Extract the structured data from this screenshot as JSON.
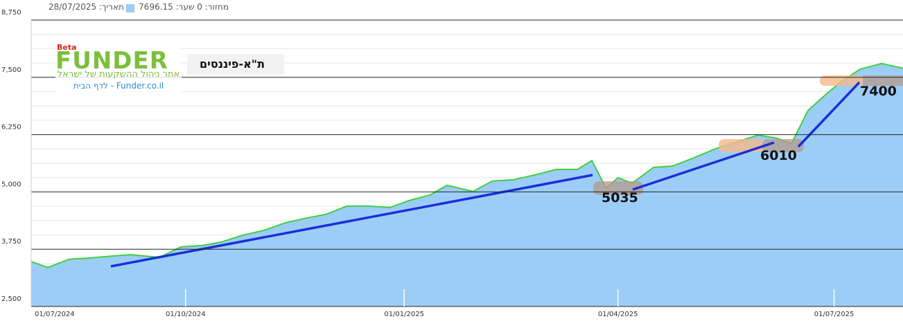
{
  "header": {
    "date_label": "תאריך:",
    "date": "28/07/2025",
    "volume_label": "מחזור:",
    "volume": 0,
    "price_label": "שער:",
    "price": 7696.15
  },
  "logo": {
    "beta": "Beta",
    "brand": "FUNDER",
    "tagline": "אתר ניהול ההשקעות של ישראל",
    "link": "Funder.co.il - לדף הבית"
  },
  "chart_data": {
    "type": "area",
    "title": "ת\"א-פיננסים",
    "color": "#9ccdf7",
    "line_color": "#3fcf3f",
    "x": [
      "28/07/2024",
      "04/08/2024",
      "13/08/2024",
      "22/08/2024",
      "31/08/2024",
      "08/09/2024",
      "20/09/2024",
      "29/09/2024",
      "08/10/2024",
      "16/10/2024",
      "25/10/2024",
      "03/11/2024",
      "12/11/2024",
      "20/11/2024",
      "29/11/2024",
      "08/12/2024",
      "17/12/2024",
      "26/12/2024",
      "03/01/2025",
      "12/01/2025",
      "19/01/2025",
      "30/01/2025",
      "07/02/2025",
      "16/02/2025",
      "25/02/2025",
      "06/03/2025",
      "15/03/2025",
      "21/03/2025",
      "27/03/2025",
      "01/04/2025",
      "07/04/2025",
      "16/04/2025",
      "24/04/2025",
      "03/05/2025",
      "12/05/2025",
      "21/05/2025",
      "30/05/2025",
      "07/06/2025",
      "13/06/2025",
      "20/06/2025",
      "28/06/2025",
      "04/07/2025",
      "12/07/2025",
      "21/07/2025",
      "30/07/2025"
    ],
    "values": [
      3480,
      3350,
      3530,
      3560,
      3600,
      3630,
      3570,
      3800,
      3830,
      3905,
      4055,
      4160,
      4325,
      4420,
      4510,
      4690,
      4690,
      4660,
      4810,
      4935,
      5145,
      5010,
      5235,
      5265,
      5370,
      5490,
      5490,
      5685,
      5080,
      5310,
      5190,
      5535,
      5565,
      5745,
      5940,
      6090,
      6240,
      6170,
      6050,
      6775,
      7150,
      7405,
      7680,
      7800,
      7700
    ],
    "xlim": [
      "28/07/2024",
      "30/07/2025"
    ],
    "xticks": [
      "01/07/2024",
      "01/10/2024",
      "01/01/2025",
      "01/04/2025",
      "01/07/2025"
    ],
    "ylim": [
      2500,
      8750
    ],
    "yticks": [
      {
        "value": 2500,
        "label": "2,500"
      },
      {
        "value": 3750,
        "label": "3,750"
      },
      {
        "value": 5000,
        "label": "5,000"
      },
      {
        "value": 6250,
        "label": "6,250"
      },
      {
        "value": 7500,
        "label": "7,500"
      },
      {
        "value": 8750,
        "label": "8,750"
      }
    ],
    "grid": true,
    "annotations": [
      "5035",
      "6010",
      "7400"
    ]
  }
}
